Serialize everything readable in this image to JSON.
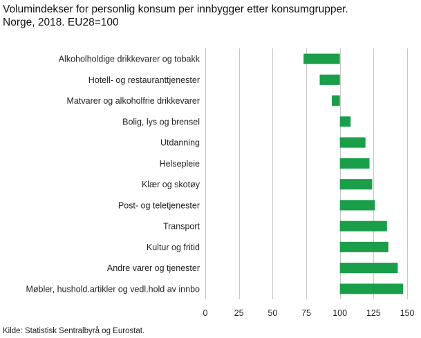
{
  "title": {
    "line1": "Volumindekser for personlig konsum per innbygger etter konsumgrupper.",
    "line2": "Norge, 2018. EU28=100"
  },
  "source": "Kilde: Statistisk Sentralbyrå og Eurostat.",
  "colors": {
    "bar": "#1a9e4a",
    "grid": "#c8c8c8",
    "axis": "#bfbfbf"
  },
  "chart_data": {
    "type": "bar",
    "orientation": "horizontal",
    "baseline": 100,
    "categories": [
      "Alkoholholdige drikkevarer og tobakk",
      "Hotell- og restauranttjenester",
      "Matvarer og alkoholfrie drikkevarer",
      "Bolig, lys og brensel",
      "Utdanning",
      "Helsepleie",
      "Klær og skotøy",
      "Post- og teletjenester",
      "Transport",
      "Kultur og fritid",
      "Andre varer og tjenester",
      "Møbler, hushold.artikler og vedl.hold av innbo"
    ],
    "values": [
      73,
      85,
      94,
      108,
      119,
      122,
      124,
      126,
      135,
      136,
      143,
      147
    ],
    "xlim": [
      0,
      150
    ],
    "xticks": [
      0,
      25,
      50,
      75,
      100,
      125,
      150
    ],
    "grid": true
  }
}
